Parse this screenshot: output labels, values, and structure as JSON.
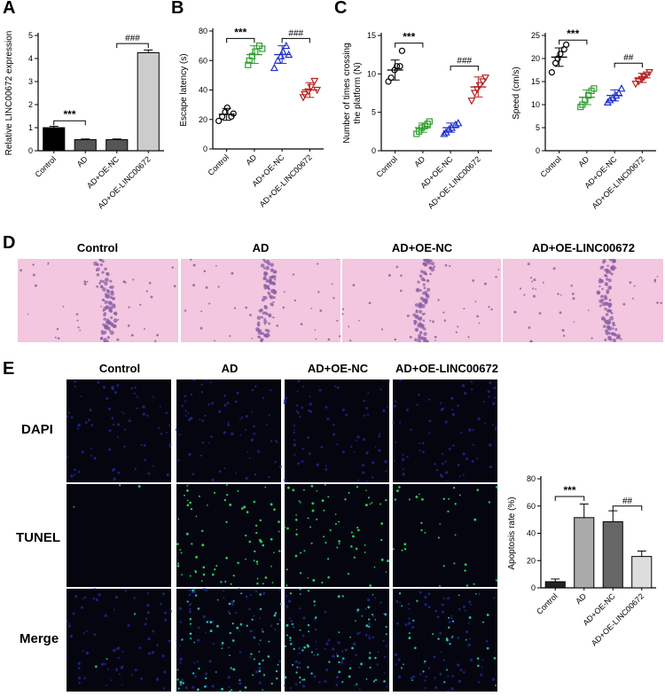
{
  "panel_letters": {
    "a": "A",
    "b": "B",
    "c": "C",
    "d": "D",
    "e": "E"
  },
  "groups": [
    "Control",
    "AD",
    "AD+OE-NC",
    "AD+OE-LINC00672"
  ],
  "group_colors": [
    "#000000",
    "#2e9e2e",
    "#1f2fd0",
    "#b52020"
  ],
  "bar_fills_a": [
    "#000000",
    "#555555",
    "#555555",
    "#cccccc"
  ],
  "bar_fills_e": [
    "#222222",
    "#aaaaaa",
    "#666666",
    "#dddddd"
  ],
  "he_header": [
    "Control",
    "AD",
    "AD+OE-NC",
    "AD+OE-LINC00672"
  ],
  "fluor_header": [
    "Control",
    "AD",
    "AD+OE-NC",
    "AD+OE-LINC00672"
  ],
  "fluor_rows": [
    "DAPI",
    "TUNEL",
    "Merge"
  ],
  "chart_data": [
    {
      "id": "A",
      "type": "bar",
      "categories": [
        "Control",
        "AD",
        "AD+OE-NC",
        "AD+OE-LINC00672"
      ],
      "values": [
        1.0,
        0.48,
        0.48,
        4.25
      ],
      "errors": [
        0.06,
        0.03,
        0.03,
        0.12
      ],
      "ylabel": "Relative LINC00672 expression",
      "ylim": [
        0,
        5
      ],
      "yticks": [
        0,
        1,
        2,
        3,
        4,
        5
      ],
      "sig": [
        {
          "label": "***",
          "from": 0,
          "to": 1,
          "y": 1.3
        },
        {
          "label": "###",
          "from": 2,
          "to": 3,
          "y": 4.65
        }
      ]
    },
    {
      "id": "B",
      "type": "scatter",
      "categories": [
        "Control",
        "AD",
        "AD+OE-NC",
        "AD+OE-LINC00672"
      ],
      "points": [
        [
          19,
          22,
          25,
          28,
          22,
          24
        ],
        [
          57,
          60,
          63,
          66,
          70,
          68
        ],
        [
          55,
          60,
          63,
          66,
          70,
          64
        ],
        [
          35,
          37,
          39,
          42,
          46,
          40
        ]
      ],
      "means": [
        23.5,
        64,
        64,
        40
      ],
      "sds": [
        4,
        6,
        6,
        5
      ],
      "ylabel": "Escape latency (s)",
      "ylim": [
        0,
        80
      ],
      "yticks": [
        0,
        20,
        40,
        60,
        80
      ],
      "sig": [
        {
          "label": "***",
          "from": 0,
          "to": 1,
          "y": 75
        },
        {
          "label": "###",
          "from": 2,
          "to": 3,
          "y": 75
        }
      ]
    },
    {
      "id": "C1",
      "type": "scatter",
      "categories": [
        "Control",
        "AD",
        "AD+OE-NC",
        "AD+OE-LINC00672"
      ],
      "points": [
        [
          9,
          9.5,
          10.5,
          11,
          11,
          13
        ],
        [
          2.2,
          2.5,
          3,
          3.2,
          3.5,
          3.8
        ],
        [
          2.2,
          2.4,
          2.8,
          3.0,
          3.4,
          3.6
        ],
        [
          6.5,
          7.5,
          8,
          8.5,
          9,
          9.5
        ]
      ],
      "means": [
        10.5,
        3,
        3,
        8.3
      ],
      "sds": [
        1.3,
        0.6,
        0.6,
        1.3
      ],
      "ylabel": "Number of times crossing the platform (N)",
      "ylim": [
        0,
        15
      ],
      "yticks": [
        0,
        5,
        10,
        15
      ],
      "sig": [
        {
          "label": "***",
          "from": 0,
          "to": 1,
          "y": 14
        },
        {
          "label": "###",
          "from": 2,
          "to": 3,
          "y": 11
        }
      ]
    },
    {
      "id": "C2",
      "type": "scatter",
      "categories": [
        "Control",
        "AD",
        "AD+OE-NC",
        "AD+OE-LINC00672"
      ],
      "points": [
        [
          17,
          19,
          20,
          21,
          22,
          23
        ],
        [
          9.5,
          10,
          11,
          12,
          13,
          13.5
        ],
        [
          10.5,
          11,
          11.5,
          12,
          12.5,
          13.5
        ],
        [
          14.5,
          15,
          15.5,
          16,
          16.5,
          17
        ]
      ],
      "means": [
        20.3,
        11.6,
        12,
        15.8
      ],
      "sds": [
        2,
        1.6,
        1.2,
        1
      ],
      "ylabel": "Speed (cm/s)",
      "ylim": [
        0,
        25
      ],
      "yticks": [
        0,
        5,
        10,
        15,
        20,
        25
      ],
      "sig": [
        {
          "label": "***",
          "from": 0,
          "to": 1,
          "y": 24
        },
        {
          "label": "##",
          "from": 2,
          "to": 3,
          "y": 19
        }
      ]
    },
    {
      "id": "E",
      "type": "bar",
      "categories": [
        "Control",
        "AD",
        "AD+OE-NC",
        "AD+OE-LINC00672"
      ],
      "values": [
        4.5,
        51.5,
        48.5,
        23
      ],
      "errors": [
        2,
        10,
        8,
        4
      ],
      "ylabel": "Apoptosis rate (%)",
      "ylim": [
        0,
        80
      ],
      "yticks": [
        0,
        20,
        40,
        60,
        80
      ],
      "sig": [
        {
          "label": "***",
          "from": 0,
          "to": 1,
          "y": 67
        },
        {
          "label": "##",
          "from": 2,
          "to": 3,
          "y": 60
        }
      ]
    }
  ]
}
